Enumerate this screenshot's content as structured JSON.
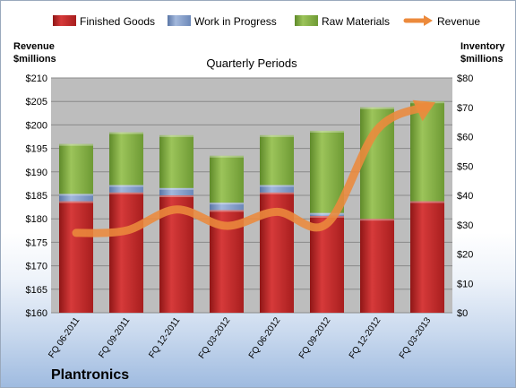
{
  "company": "Plantronics",
  "colors": {
    "finished_goods": "#c62a2a",
    "work_in_progress": "#7d97c2",
    "raw_materials": "#8eb44a",
    "revenue": "#ec8a3c",
    "plot_background": "#bdbdbd"
  },
  "chart_data": {
    "type": "bar",
    "subtitle": "Quarterly Periods",
    "stacked": true,
    "categories": [
      "FQ 06-2011",
      "FQ 09-2011",
      "FQ 12-2011",
      "FQ 03-2012",
      "FQ 06-2012",
      "FQ 09-2012",
      "FQ 12-2012",
      "FQ 03-2013"
    ],
    "left_axis": {
      "title_line1": "Revenue",
      "title_line2": "$millions",
      "range": [
        160,
        210
      ],
      "ticks": [
        "$160",
        "$165",
        "$170",
        "$175",
        "$180",
        "$185",
        "$190",
        "$195",
        "$200",
        "$205",
        "$210"
      ]
    },
    "right_axis": {
      "title_line1": "Inventory",
      "title_line2": "$millions",
      "range": [
        0,
        80
      ],
      "ticks": [
        "$0",
        "$10",
        "$20",
        "$30",
        "$40",
        "$50",
        "$60",
        "$70",
        "$80"
      ]
    },
    "grid": true,
    "legend_position": "top",
    "legend": [
      "Finished Goods",
      "Work in Progress",
      "Raw Materials",
      "Revenue"
    ],
    "series": [
      {
        "name": "Finished Goods",
        "axis": "right",
        "values": [
          38,
          41,
          40,
          35,
          41,
          33,
          32,
          38
        ]
      },
      {
        "name": "Work in Progress",
        "axis": "right",
        "values": [
          2.5,
          2.5,
          2.5,
          2.5,
          2.5,
          1,
          0,
          0
        ]
      },
      {
        "name": "Raw Materials",
        "axis": "right",
        "values": [
          17,
          18,
          18,
          16,
          17,
          28,
          38,
          34
        ]
      },
      {
        "name": "Revenue",
        "axis": "left",
        "type": "line",
        "values": [
          177,
          177.5,
          182,
          178.5,
          181.5,
          179,
          199,
          204
        ]
      }
    ]
  }
}
